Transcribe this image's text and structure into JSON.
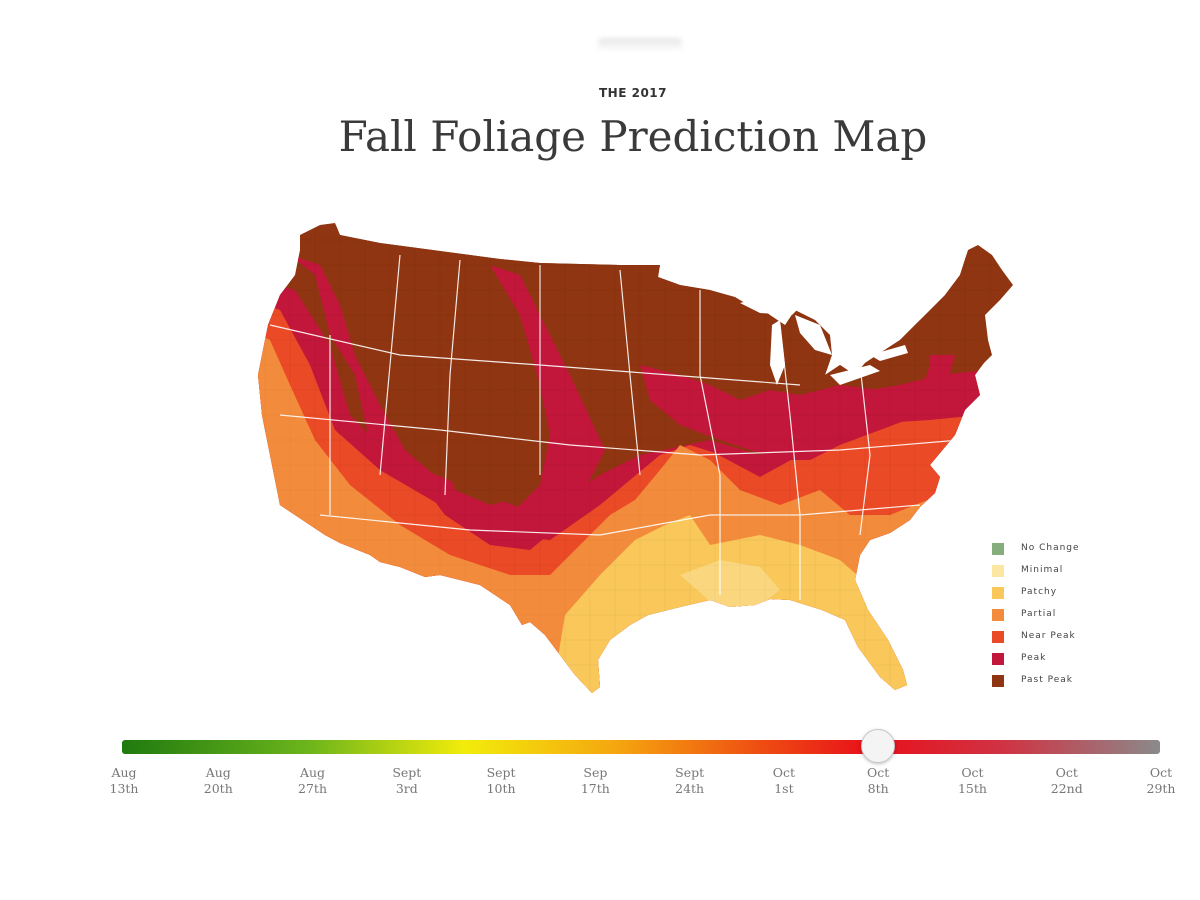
{
  "header": {
    "eyebrow": "THE 2017",
    "title": "Fall Foliage Prediction Map"
  },
  "legend": [
    {
      "label": "No Change",
      "color": "#86ad7c"
    },
    {
      "label": "Minimal",
      "color": "#fbe7a1"
    },
    {
      "label": "Patchy",
      "color": "#f9c75a"
    },
    {
      "label": "Partial",
      "color": "#f28c3c"
    },
    {
      "label": "Near Peak",
      "color": "#ea4a26"
    },
    {
      "label": "Peak",
      "color": "#c2163a"
    },
    {
      "label": "Past Peak",
      "color": "#8f3511"
    }
  ],
  "timeline": {
    "selected_index": 8,
    "ticks": [
      {
        "month": "Aug",
        "day": "13th"
      },
      {
        "month": "Aug",
        "day": "20th"
      },
      {
        "month": "Aug",
        "day": "27th"
      },
      {
        "month": "Sept",
        "day": "3rd"
      },
      {
        "month": "Sept",
        "day": "10th"
      },
      {
        "month": "Sep",
        "day": "17th"
      },
      {
        "month": "Sept",
        "day": "24th"
      },
      {
        "month": "Oct",
        "day": "1st"
      },
      {
        "month": "Oct",
        "day": "8th"
      },
      {
        "month": "Oct",
        "day": "15th"
      },
      {
        "month": "Oct",
        "day": "22nd"
      },
      {
        "month": "Oct",
        "day": "29th"
      }
    ]
  }
}
